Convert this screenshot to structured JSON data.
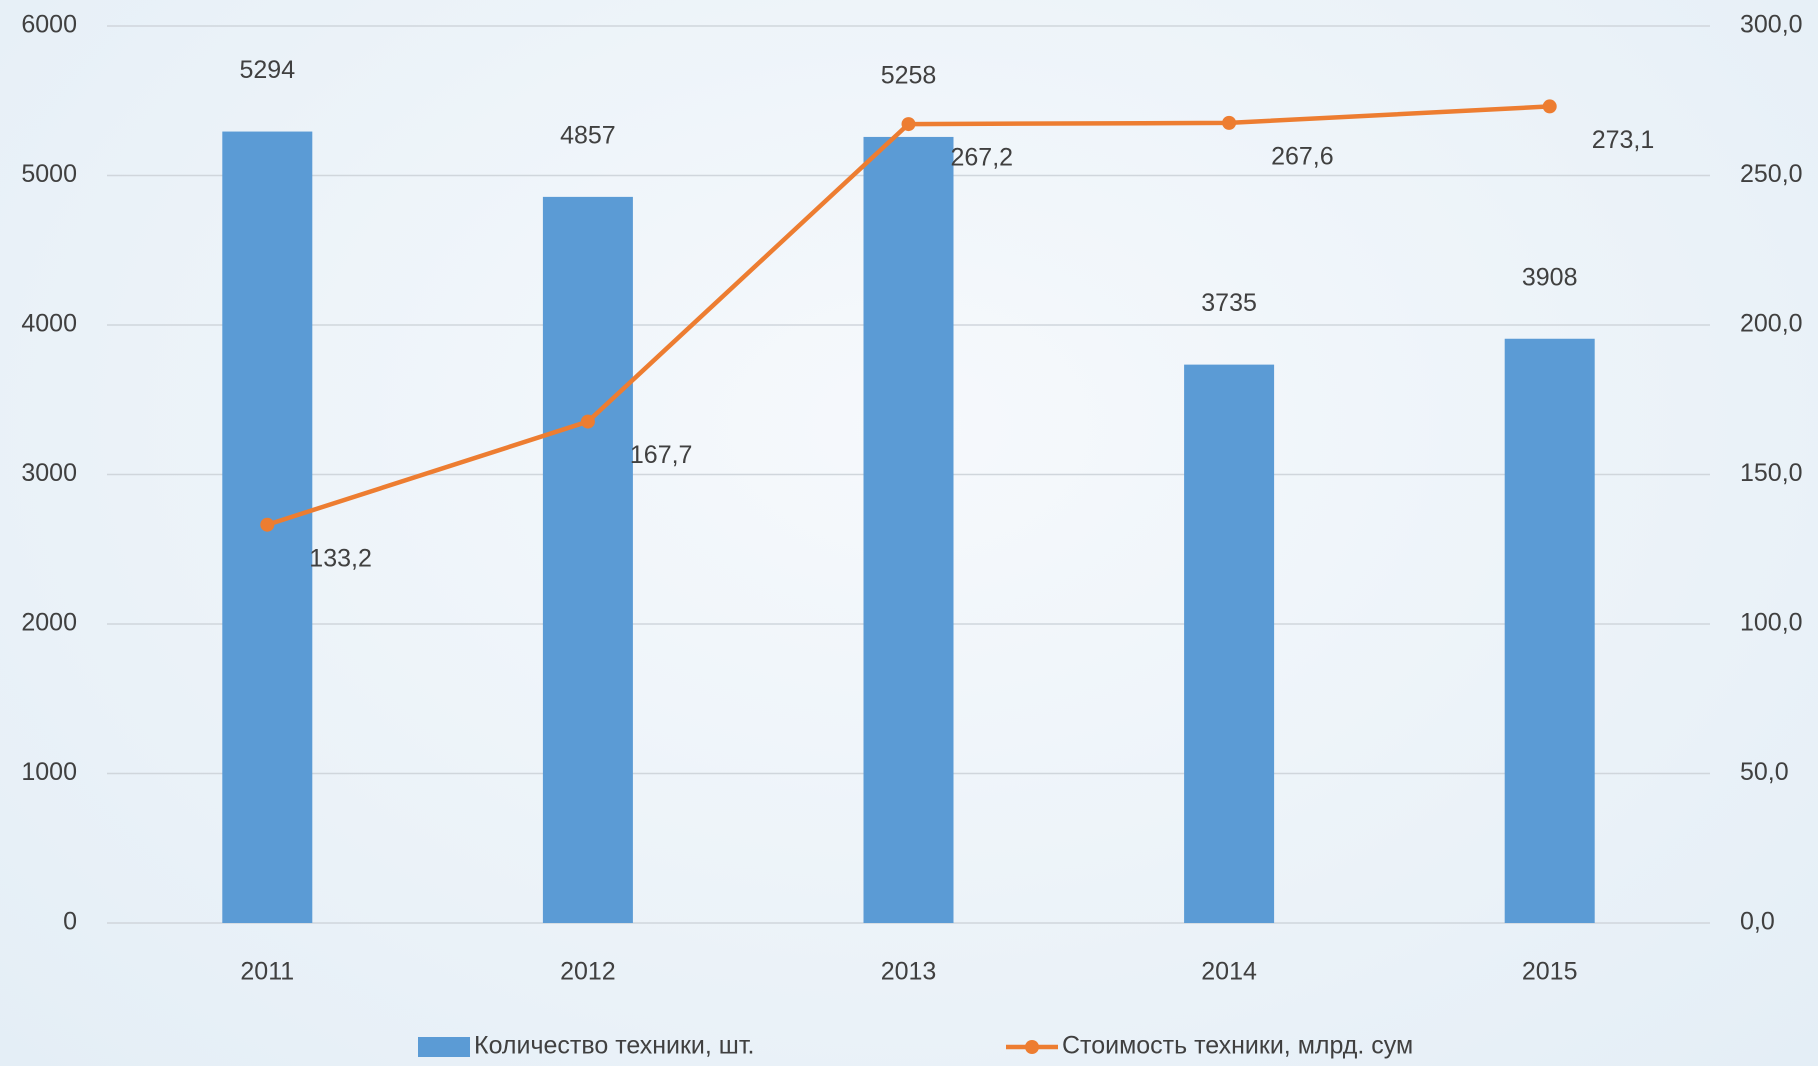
{
  "chart_data": {
    "type": "bar-line",
    "categories": [
      "2011",
      "2012",
      "2013",
      "2014",
      "2015"
    ],
    "series": [
      {
        "name": "Количество техники, шт.",
        "type": "bar",
        "color": "#5b9bd5",
        "values": [
          5294,
          4857,
          5258,
          3735,
          3908
        ]
      },
      {
        "name": "Стоимость техники, млрд. сум",
        "type": "line",
        "axis": "y2",
        "color": "#ed7d31",
        "values": [
          133.2,
          167.7,
          267.2,
          267.6,
          273.1
        ],
        "value_labels": [
          "133,2",
          "167,7",
          "267,2",
          "267,6",
          "273,1"
        ]
      }
    ],
    "ylim": [
      0,
      6000
    ],
    "yticks": [
      0,
      1000,
      2000,
      3000,
      4000,
      5000,
      6000
    ],
    "y2lim": [
      0,
      300
    ],
    "y2ticks": [
      {
        "value": 0,
        "label": "0,0"
      },
      {
        "value": 50,
        "label": "50,0"
      },
      {
        "value": 100,
        "label": "100,0"
      },
      {
        "value": 150,
        "label": "150,0"
      },
      {
        "value": 200,
        "label": "200,0"
      },
      {
        "value": 250,
        "label": "250,0"
      },
      {
        "value": 300,
        "label": "300,0"
      }
    ],
    "grid": true,
    "legend": "bottom"
  }
}
